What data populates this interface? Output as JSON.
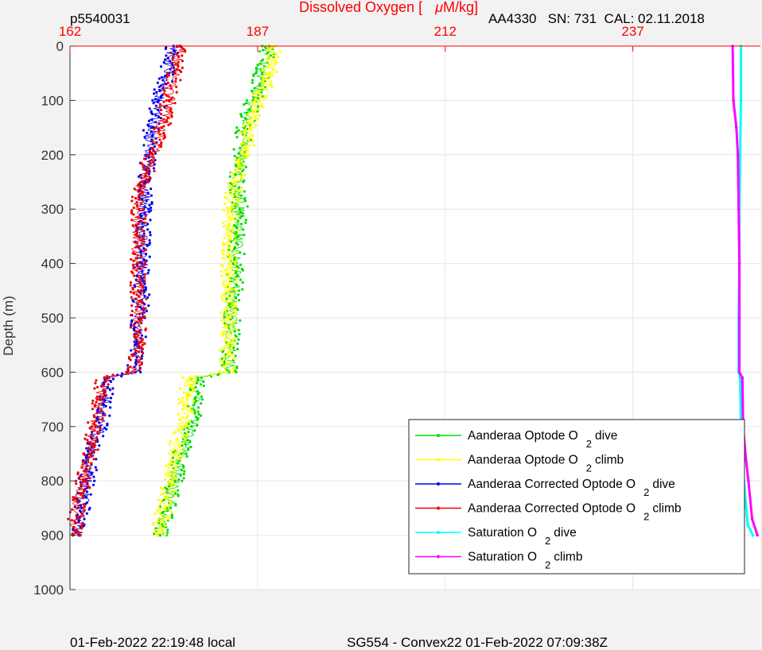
{
  "header": {
    "left": "p5540031",
    "title_prefix": "Dissolved Oxygen [",
    "title_mu": "μ",
    "title_suffix": "M/kg]",
    "right": "AA4330   SN: 731  CAL: 02.11.2018"
  },
  "footer": {
    "left": "01-Feb-2022 22:19:48 local",
    "right": "SG554 - Convex22 01-Feb-2022 07:09:38Z"
  },
  "colors": {
    "axis_accent": "#ff0000",
    "grid": "#e6e6e6",
    "background": "#f2f2f2",
    "plot": "#ffffff"
  },
  "chart_data": {
    "type": "scatter",
    "title": "Dissolved Oxygen [μM/kg]",
    "xlabel": "",
    "ylabel": "Depth (m)",
    "xlim": [
      162,
      254
    ],
    "ylim": [
      1000,
      0
    ],
    "x_ticks": [
      "162",
      "187",
      "212",
      "237"
    ],
    "y_ticks": [
      "0",
      "100",
      "200",
      "300",
      "400",
      "500",
      "600",
      "700",
      "800",
      "900",
      "1000"
    ],
    "grid": true,
    "legend_position": "bottom-right",
    "series": [
      {
        "name": "Aanderaa Optode O2 dive",
        "label": "Aanderaa Optode O",
        "sub": "2",
        "tail": "dive",
        "color": "#00dd00",
        "depth": [
          0,
          50,
          100,
          150,
          200,
          250,
          300,
          350,
          400,
          450,
          500,
          550,
          600,
          610,
          650,
          700,
          750,
          800,
          850,
          900
        ],
        "x": [
          188.5,
          187.6,
          186.4,
          185.2,
          184.8,
          184.2,
          184.6,
          184.4,
          184.0,
          183.9,
          183.6,
          183.4,
          183.2,
          179.0,
          178.6,
          178.2,
          176.8,
          176.0,
          175.0,
          174.0
        ]
      },
      {
        "name": "Aanderaa Optode O2 climb",
        "label": "Aanderaa Optode O",
        "sub": "2",
        "tail": "climb",
        "color": "#ffff00",
        "depth": [
          0,
          50,
          100,
          150,
          200,
          250,
          300,
          350,
          400,
          450,
          500,
          550,
          600,
          610,
          650,
          700,
          750,
          800,
          850,
          900
        ],
        "x": [
          189.3,
          188.6,
          187.2,
          186.0,
          185.2,
          184.0,
          183.5,
          183.3,
          183.2,
          183.1,
          183.0,
          183.0,
          182.8,
          178.0,
          177.6,
          177.0,
          176.0,
          175.4,
          174.6,
          173.6
        ]
      },
      {
        "name": "Aanderaa Corrected Optode O2 dive",
        "label": "Aanderaa Corrected Optode O",
        "sub": "2",
        "tail": "dive",
        "color": "#0000ee",
        "depth": [
          0,
          50,
          100,
          150,
          200,
          250,
          300,
          350,
          400,
          450,
          500,
          550,
          600,
          610,
          650,
          700,
          750,
          800,
          850,
          900
        ],
        "x": [
          175.8,
          175.0,
          173.8,
          172.9,
          172.5,
          172.0,
          171.8,
          171.7,
          171.6,
          171.5,
          171.3,
          171.0,
          170.7,
          167.0,
          166.5,
          166.0,
          164.8,
          164.2,
          163.6,
          163.2
        ]
      },
      {
        "name": "Aanderaa Corrected Optode O2 climb",
        "label": "Aanderaa Corrected Optode O",
        "sub": "2",
        "tail": "climb",
        "color": "#ee0000",
        "depth": [
          0,
          50,
          100,
          150,
          200,
          250,
          300,
          350,
          400,
          450,
          500,
          550,
          600,
          610,
          650,
          700,
          750,
          800,
          850,
          900
        ],
        "x": [
          176.6,
          176.0,
          175.2,
          174.2,
          173.0,
          171.6,
          171.2,
          171.0,
          171.0,
          171.1,
          171.2,
          171.1,
          170.6,
          166.6,
          166.0,
          165.4,
          164.6,
          163.8,
          163.0,
          162.4
        ]
      },
      {
        "name": "Saturation O2 dive",
        "label": "Saturation O",
        "sub": "2",
        "tail": "dive",
        "color": "#00ffff",
        "depth": [
          0,
          100,
          200,
          300,
          400,
          500,
          600,
          610,
          700,
          800,
          880,
          900
        ],
        "x": [
          251.4,
          251.4,
          251.3,
          251.2,
          251.2,
          251.1,
          251.1,
          251.3,
          251.4,
          251.8,
          252.3,
          253.0
        ]
      },
      {
        "name": "Saturation O2 climb",
        "label": "Saturation O",
        "sub": "2",
        "tail": "climb",
        "color": "#ff00ff",
        "depth": [
          0,
          100,
          150,
          200,
          300,
          400,
          500,
          600,
          610,
          700,
          750,
          800,
          870,
          900
        ],
        "x": [
          250.3,
          250.4,
          250.8,
          251.0,
          251.1,
          251.2,
          251.2,
          251.2,
          251.6,
          251.7,
          252.0,
          252.4,
          252.9,
          253.6
        ]
      }
    ]
  }
}
